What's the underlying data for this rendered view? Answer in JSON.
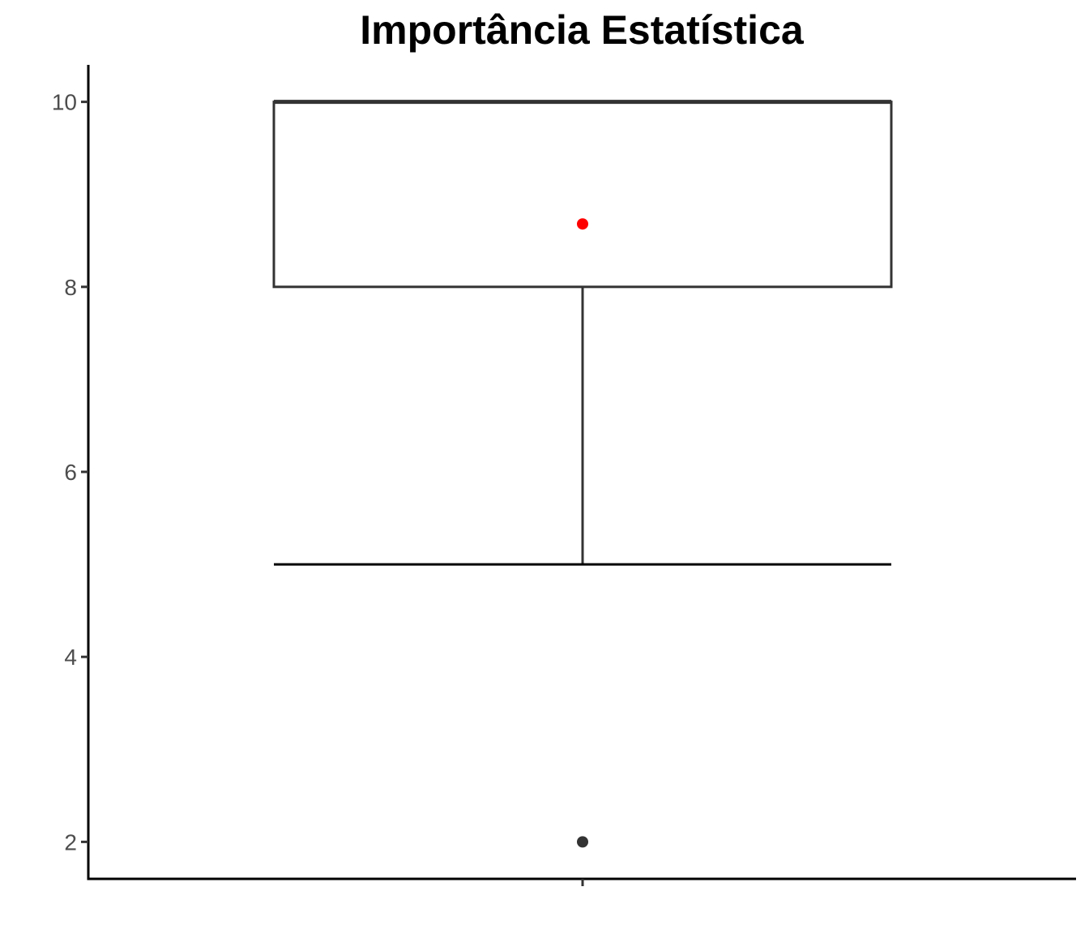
{
  "chart_data": {
    "type": "boxplot",
    "title": "Importância Estatística",
    "xlabel": "",
    "ylabel": "",
    "ylim": [
      1.6,
      10.4
    ],
    "yticks": [
      2,
      4,
      6,
      8,
      10
    ],
    "grid": false,
    "legend": "none",
    "box": {
      "q1": 8,
      "median": 10,
      "q3": 10,
      "whisker_low": 5,
      "whisker_high": 10,
      "mean": 8.68,
      "outliers": [
        2
      ]
    },
    "colors": {
      "box_line": "#333333",
      "mean_point": "#ff0000",
      "outlier_point": "#333333",
      "axis": "#000000",
      "tick_label": "#4d4d4d"
    }
  }
}
